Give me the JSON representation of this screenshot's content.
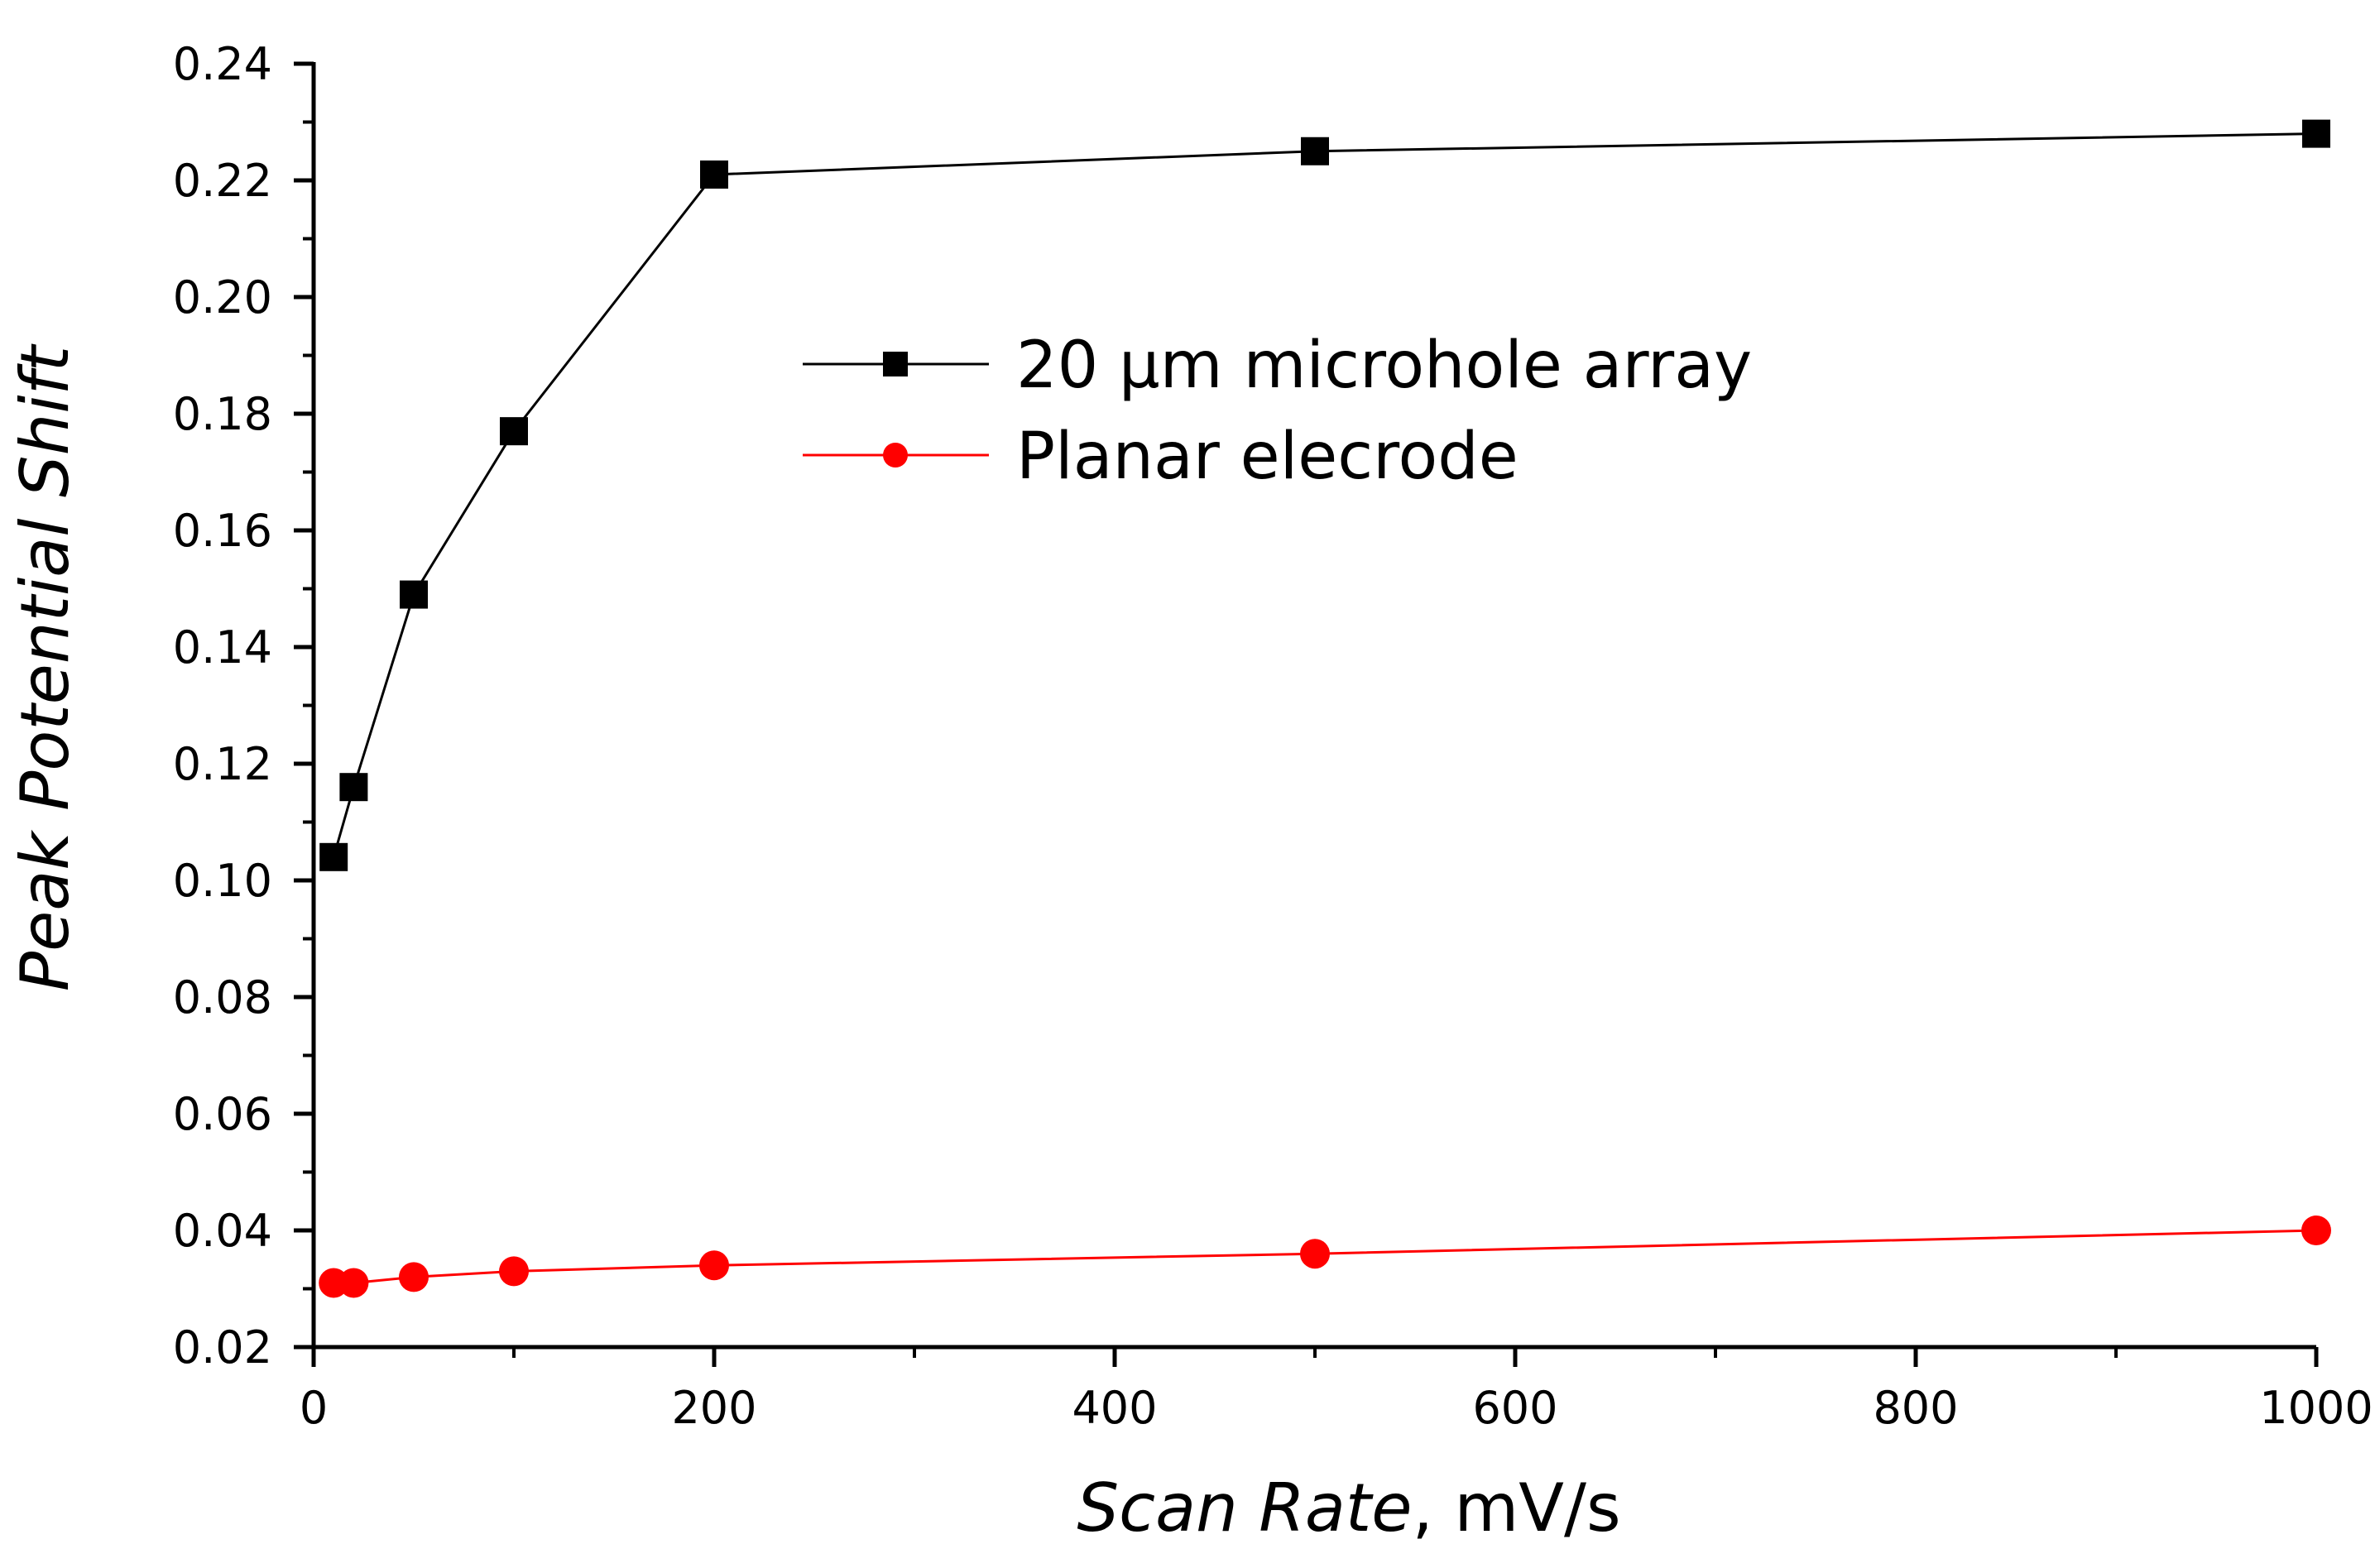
{
  "chart_data": {
    "type": "line",
    "title": "",
    "xlabel_italic": "Scan Rate",
    "xlabel_unit": ", mV/s",
    "ylabel": "Peak Potential Shift",
    "xlim": [
      0,
      1000
    ],
    "ylim": [
      0.02,
      0.24
    ],
    "x_ticks": [
      0,
      200,
      400,
      600,
      800,
      1000
    ],
    "x_tick_labels": [
      "0",
      "200",
      "400",
      "600",
      "800",
      "1000"
    ],
    "y_ticks": [
      0.02,
      0.04,
      0.06,
      0.08,
      0.1,
      0.12,
      0.14,
      0.16,
      0.18,
      0.2,
      0.22,
      0.24
    ],
    "y_tick_labels": [
      "0.02",
      "0.04",
      "0.06",
      "0.08",
      "0.10",
      "0.12",
      "0.14",
      "0.16",
      "0.18",
      "0.20",
      "0.22",
      "0.24"
    ],
    "grid": false,
    "legend_position": "upper-center",
    "series": [
      {
        "name": "20 μm microhole array",
        "color": "#000000",
        "marker": "square",
        "x": [
          10,
          20,
          50,
          100,
          200,
          500,
          1000
        ],
        "y": [
          0.104,
          0.116,
          0.149,
          0.177,
          0.221,
          0.225,
          0.228
        ]
      },
      {
        "name": "Planar elecrode",
        "color": "#ff0000",
        "marker": "circle",
        "x": [
          10,
          20,
          50,
          100,
          200,
          500,
          1000
        ],
        "y": [
          0.031,
          0.031,
          0.032,
          0.033,
          0.034,
          0.036,
          0.04
        ]
      }
    ]
  }
}
